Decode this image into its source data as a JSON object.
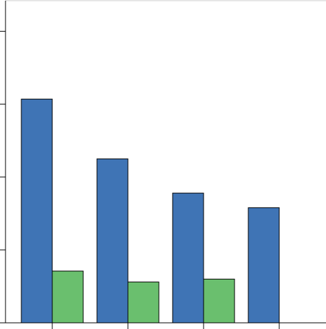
{
  "chart_data": {
    "type": "bar",
    "categories": [
      null,
      null,
      null,
      null
    ],
    "series": [
      {
        "color": "#3f74b5",
        "values": [
          3.07,
          2.25,
          1.78,
          1.58
        ]
      },
      {
        "color": "#6abf6e",
        "values": [
          0.71,
          0.56,
          0.6,
          null
        ]
      }
    ],
    "ylim": [
      0,
      4.42
    ],
    "yticks": [
      0,
      1,
      2,
      3,
      4
    ]
  }
}
